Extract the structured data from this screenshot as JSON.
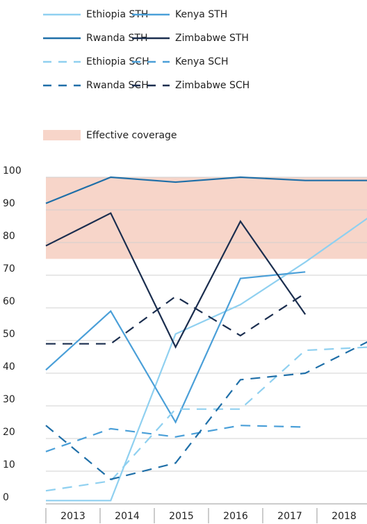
{
  "chart_data": {
    "type": "line",
    "categories": [
      "2013",
      "2014",
      "2015",
      "2016",
      "2017",
      "2018"
    ],
    "series": [
      {
        "name": "Ethiopia STH",
        "color": "#8fd0f0",
        "dash": false,
        "values": [
          1,
          1,
          52,
          61,
          74,
          88
        ]
      },
      {
        "name": "Kenya STH",
        "color": "#4a9fd8",
        "dash": false,
        "values": [
          41,
          59,
          25,
          69,
          71,
          null
        ]
      },
      {
        "name": "Rwanda STH",
        "color": "#1f6fa8",
        "dash": false,
        "values": [
          92,
          100,
          98.5,
          100,
          99,
          99
        ]
      },
      {
        "name": "Zimbabwe STH",
        "color": "#1b2e4f",
        "dash": false,
        "values": [
          79,
          89,
          48,
          86.5,
          58,
          null
        ]
      },
      {
        "name": "Ethiopia SCH",
        "color": "#8fd0f0",
        "dash": true,
        "values": [
          4,
          7,
          29,
          29,
          47,
          48
        ]
      },
      {
        "name": "Kenya SCH",
        "color": "#4a9fd8",
        "dash": true,
        "values": [
          16,
          23,
          20.5,
          24,
          23.5,
          null
        ]
      },
      {
        "name": "Rwanda SCH",
        "color": "#1f6fa8",
        "dash": true,
        "values": [
          24,
          7.5,
          12.5,
          38,
          40,
          50
        ]
      },
      {
        "name": "Zimbabwe SCH",
        "color": "#1b2e4f",
        "dash": true,
        "values": [
          49,
          49,
          63.5,
          51.5,
          64.5,
          null
        ]
      }
    ],
    "band": {
      "label": "Effective coverage",
      "range": [
        75,
        100
      ],
      "color": "#f7d5c9"
    },
    "ylim": [
      0,
      100
    ],
    "yticks": [
      0,
      10,
      20,
      30,
      40,
      50,
      60,
      70,
      80,
      90,
      100
    ],
    "grid": true
  }
}
